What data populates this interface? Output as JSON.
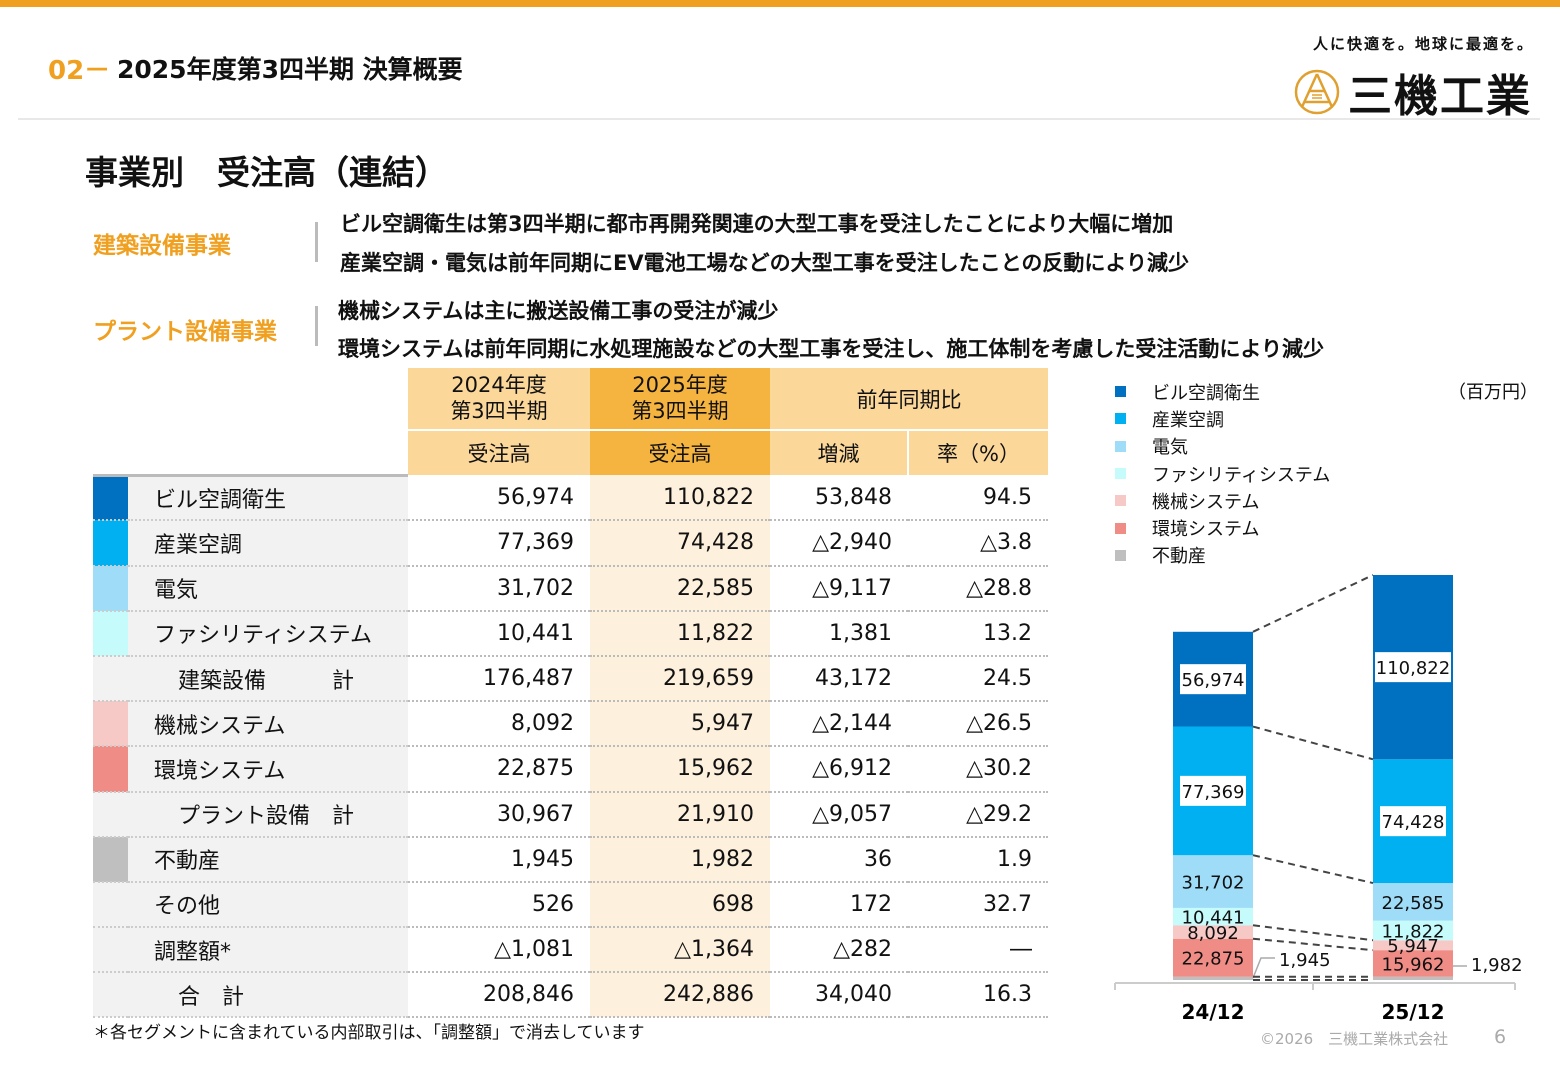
{
  "header": {
    "number": "02－",
    "title": "2025年度第3四半期 決算概要",
    "slogan": "人に快適を。地球に最適を。",
    "logo_text": "三機工業"
  },
  "section_title": "事業別　受注高（連結）",
  "segments": [
    {
      "name": "建築設備事業",
      "lines": [
        "ビル空調衛生は第3四半期に都市再開発関連の大型工事を受注したことにより大幅に増加",
        "産業空調・電気は前年同期にEV電池工場などの大型工事を受注したことの反動により減少"
      ]
    },
    {
      "name": "プラント設備事業",
      "lines": [
        "機械システムは主に搬送設備工事の受注が減少",
        "環境システムは前年同期に水処理施設などの大型工事を受注し、施工体制を考慮した受注活動により減少"
      ]
    }
  ],
  "table": {
    "headers": {
      "col1_top": "2024年度\n第3四半期",
      "col2_top": "2025年度\n第3四半期",
      "col34_top": "前年同期比",
      "col1_sub": "受注高",
      "col2_sub": "受注高",
      "col3_sub": "増減",
      "col4_sub": "率（%）"
    },
    "rows": [
      {
        "label": "ビル空調衛生",
        "color": "#0070c0",
        "v": [
          "56,974",
          "110,822",
          "53,848",
          "94.5"
        ]
      },
      {
        "label": "産業空調",
        "color": "#00b0f0",
        "v": [
          "77,369",
          "74,428",
          "△2,940",
          "△3.8"
        ]
      },
      {
        "label": "電気",
        "color": "#9fdcf8",
        "v": [
          "31,702",
          "22,585",
          "△9,117",
          "△28.8"
        ]
      },
      {
        "label": "ファシリティシステム",
        "color": "#c6fbfb",
        "v": [
          "10,441",
          "11,822",
          "1,381",
          "13.2"
        ]
      },
      {
        "label": "建築設備　　　計",
        "color": "#f2f2f2",
        "sub": true,
        "v": [
          "176,487",
          "219,659",
          "43,172",
          "24.5"
        ]
      },
      {
        "label": "機械システム",
        "color": "#f6c8c6",
        "v": [
          "8,092",
          "5,947",
          "△2,144",
          "△26.5"
        ]
      },
      {
        "label": "環境システム",
        "color": "#f08c86",
        "v": [
          "22,875",
          "15,962",
          "△6,912",
          "△30.2"
        ]
      },
      {
        "label": "プラント設備　計",
        "color": "#f2f2f2",
        "sub": true,
        "v": [
          "30,967",
          "21,910",
          "△9,057",
          "△29.2"
        ]
      },
      {
        "label": "不動産",
        "color": "#bfbfbf",
        "v": [
          "1,945",
          "1,982",
          "36",
          "1.9"
        ]
      },
      {
        "label": "その他",
        "color": "#f2f2f2",
        "v": [
          "526",
          "698",
          "172",
          "32.7"
        ]
      },
      {
        "label": "調整額*",
        "color": "#f2f2f2",
        "v": [
          "△1,081",
          "△1,364",
          "△282",
          "―"
        ]
      },
      {
        "label": "合　計",
        "color": "#f2f2f2",
        "sub": true,
        "v": [
          "208,846",
          "242,886",
          "34,040",
          "16.3"
        ]
      }
    ]
  },
  "footnote": "＊各セグメントに含まれている内部取引は、「調整額」で消去しています",
  "copyright": "©2026　三機工業株式会社",
  "page": "6",
  "chart_data": {
    "type": "bar",
    "stacked": true,
    "unit": "（百万円）",
    "categories": [
      "24/12",
      "25/12"
    ],
    "series": [
      {
        "name": "ビル空調衛生",
        "color": "#0070c0",
        "values": [
          56974,
          110822
        ],
        "labels": [
          "56,974",
          "110,822"
        ]
      },
      {
        "name": "産業空調",
        "color": "#00b0f0",
        "values": [
          77369,
          74428
        ],
        "labels": [
          "77,369",
          "74,428"
        ]
      },
      {
        "name": "電気",
        "color": "#9fdcf8",
        "values": [
          31702,
          22585
        ],
        "labels": [
          "31,702",
          "22,585"
        ]
      },
      {
        "name": "ファシリティシステム",
        "color": "#c6fbfb",
        "values": [
          10441,
          11822
        ],
        "labels": [
          "10,441",
          "11,822"
        ]
      },
      {
        "name": "機械システム",
        "color": "#f6c8c6",
        "values": [
          8092,
          5947
        ],
        "labels": [
          "8,092",
          "5,947"
        ]
      },
      {
        "name": "環境システム",
        "color": "#f08c86",
        "values": [
          22875,
          15962
        ],
        "labels": [
          "22,875",
          "15,962"
        ]
      },
      {
        "name": "不動産",
        "color": "#bfbfbf",
        "values": [
          1945,
          1982
        ],
        "labels": [
          "1,945",
          "1,982"
        ]
      }
    ]
  }
}
